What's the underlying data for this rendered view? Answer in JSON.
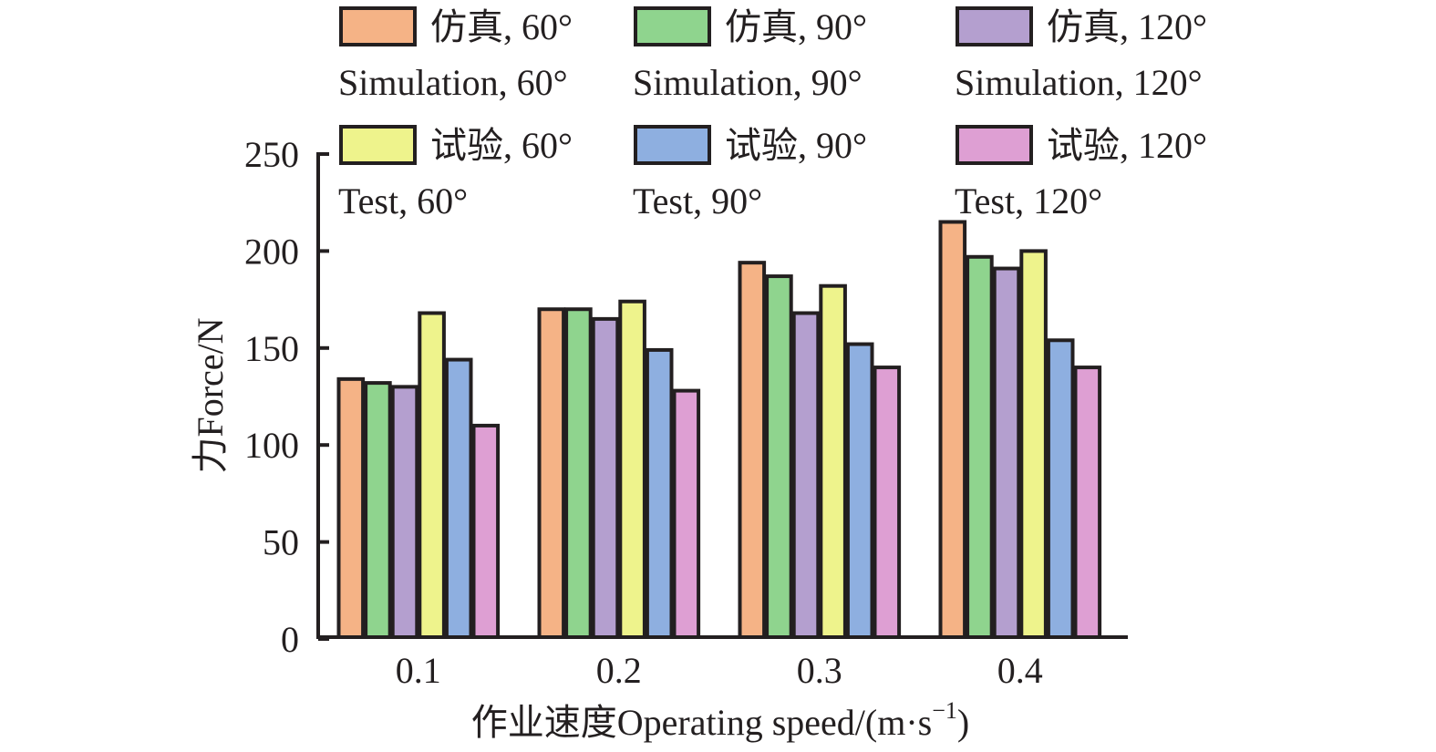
{
  "chart_data": {
    "type": "bar",
    "title": "",
    "xlabel": "作业速度Operating speed/(m·s",
    "xlabel_superscript": "−1",
    "xlabel_suffix": ")",
    "ylabel": "力Force/N",
    "categories": [
      "0.1",
      "0.2",
      "0.3",
      "0.4"
    ],
    "ylim": [
      0,
      250
    ],
    "yticks": [
      0,
      50,
      100,
      150,
      200,
      250
    ],
    "grid": false,
    "legend_position": "top",
    "series": [
      {
        "name": "仿真, 60°",
        "name_en": "Simulation, 60°",
        "color": "#f5b386",
        "values": [
          134,
          170,
          194,
          215
        ]
      },
      {
        "name": "仿真, 90°",
        "name_en": "Simulation, 90°",
        "color": "#8fd48e",
        "values": [
          132,
          170,
          187,
          197
        ]
      },
      {
        "name": "仿真, 120°",
        "name_en": "Simulation, 120°",
        "color": "#b49fcf",
        "values": [
          130,
          165,
          168,
          191
        ]
      },
      {
        "name": "试验, 60°",
        "name_en": "Test, 60°",
        "color": "#eef38c",
        "values": [
          168,
          174,
          182,
          200
        ]
      },
      {
        "name": "试验, 90°",
        "name_en": "Test, 90°",
        "color": "#8eafe0",
        "values": [
          144,
          149,
          152,
          154
        ]
      },
      {
        "name": "试验, 120°",
        "name_en": "Test, 120°",
        "color": "#de9fd3",
        "values": [
          110,
          128,
          140,
          140
        ]
      }
    ]
  }
}
